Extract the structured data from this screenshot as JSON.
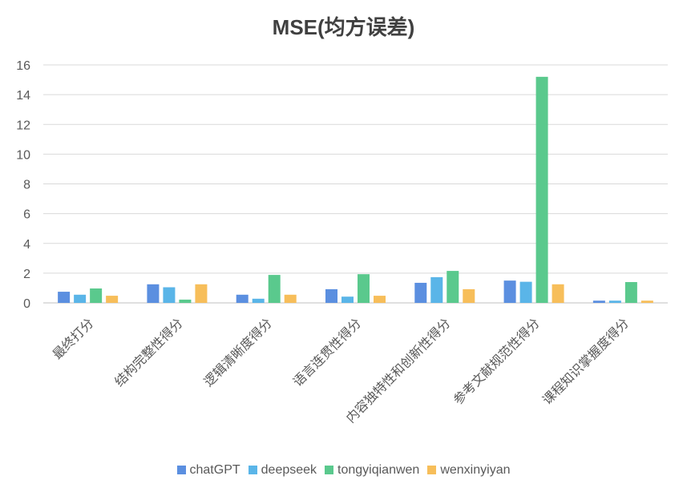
{
  "chart_data": {
    "type": "bar",
    "title": "MSE(均方误差)",
    "xlabel": "",
    "ylabel": "",
    "ylim": [
      0,
      16
    ],
    "yticks": [
      0,
      2,
      4,
      6,
      8,
      10,
      12,
      14,
      16
    ],
    "grid": true,
    "legend_position": "bottom",
    "categories": [
      "最终打分",
      "结构完整性得分",
      "逻辑清晰度得分",
      "语言连贯性得分",
      "内容独特性和创新性得分",
      "参考文献规范性得分",
      "课程知识掌握度得分"
    ],
    "series": [
      {
        "name": "chatGPT",
        "color": "#5B8FE0",
        "values": [
          0.75,
          1.25,
          0.55,
          0.92,
          1.35,
          1.5,
          0.15
        ]
      },
      {
        "name": "deepseek",
        "color": "#5AB5E8",
        "values": [
          0.55,
          1.05,
          0.28,
          0.42,
          1.73,
          1.42,
          0.15
        ]
      },
      {
        "name": "tongyiqianwen",
        "color": "#5AC98D",
        "values": [
          0.97,
          0.22,
          1.88,
          1.93,
          2.15,
          15.2,
          1.4
        ]
      },
      {
        "name": "wenxinyiyan",
        "color": "#F7BE5A",
        "values": [
          0.48,
          1.25,
          0.55,
          0.48,
          0.92,
          1.25,
          0.15
        ]
      }
    ]
  }
}
